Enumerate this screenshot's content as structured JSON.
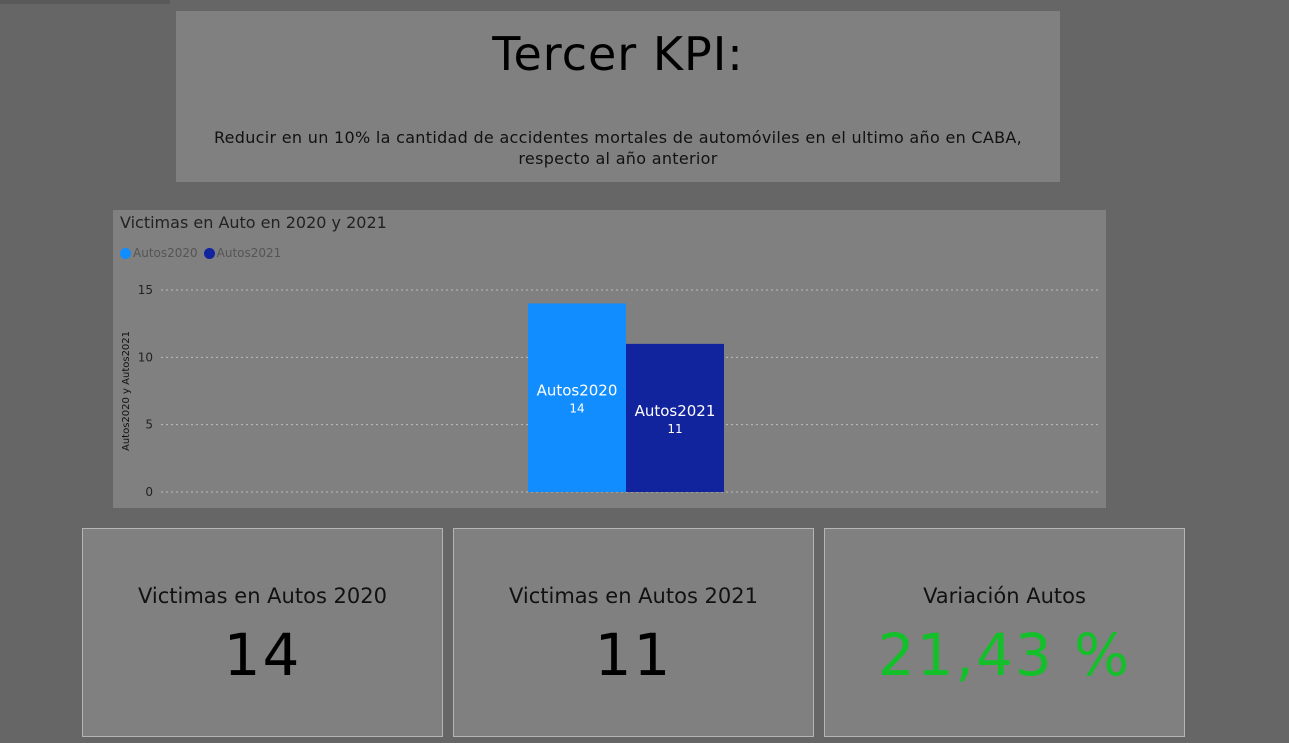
{
  "header": {
    "title": "Tercer KPI:",
    "description_line1": "Reducir en un 10% la cantidad de accidentes mortales de automóviles en el ultimo año en CABA,",
    "description_line2": "respecto al año anterior"
  },
  "chart_data": {
    "type": "bar",
    "title": "Victimas en Auto en 2020 y 2021",
    "ylabel": "Autos2020 y Autos2021",
    "xlabel": "",
    "ylim": [
      0,
      15
    ],
    "yticks": [
      0,
      5,
      10,
      15
    ],
    "grid": true,
    "legend_position": "top-left",
    "series": [
      {
        "name": "Autos2020",
        "values": [
          14
        ],
        "color": "#118dff"
      },
      {
        "name": "Autos2021",
        "values": [
          11
        ],
        "color": "#12239e"
      }
    ]
  },
  "cards": [
    {
      "label": "Victimas en Autos 2020",
      "value": "14",
      "color": "#000000"
    },
    {
      "label": "Victimas en Autos 2021",
      "value": "11",
      "color": "#000000"
    },
    {
      "label": "Variación Autos",
      "value": "21,43 %",
      "color": "#13c02a"
    }
  ]
}
